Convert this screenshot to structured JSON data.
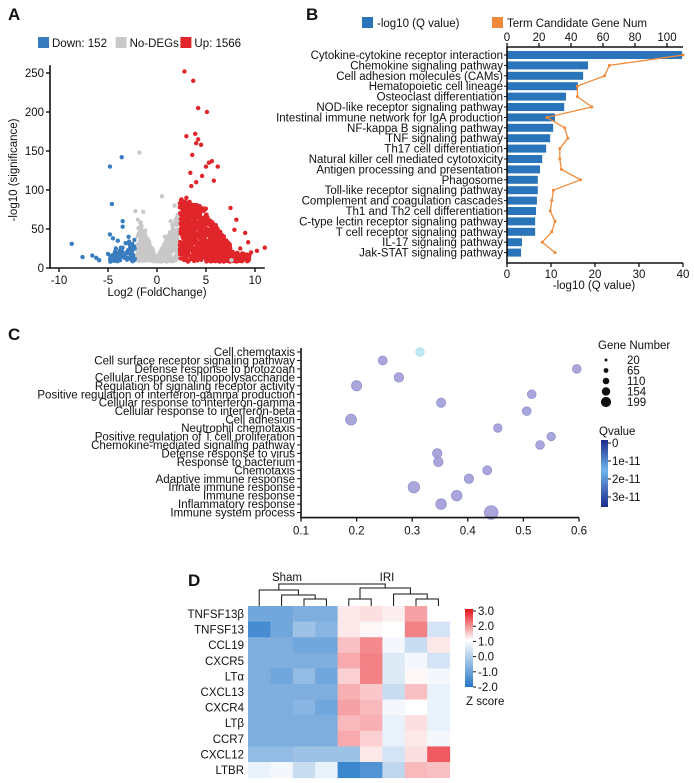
{
  "panels": {
    "a": {
      "letter": "A"
    },
    "b": {
      "letter": "B"
    },
    "c": {
      "letter": "C"
    },
    "d": {
      "letter": "D"
    }
  },
  "colors": {
    "down": "#3a7dbf",
    "nodeg": "#c8c8c8",
    "up": "#e0262a",
    "bar": "#2a74b9",
    "line": "#f08a3a",
    "bubble": "#a9a6dc",
    "bubble_light": "#bfe8f2"
  },
  "chart_data": [
    {
      "id": "volcano",
      "type": "scatter",
      "title": "",
      "xlabel": "Log2 (FoldChange)",
      "ylabel": "-log10 (significance)",
      "xlim": [
        -11,
        11
      ],
      "ylim": [
        0,
        260
      ],
      "xticks": [
        -10,
        -5,
        0,
        5,
        10
      ],
      "yticks": [
        0,
        50,
        100,
        150,
        200,
        250
      ],
      "legend": [
        {
          "name": "Down: 152",
          "color": "#3a7dbf"
        },
        {
          "name": "No-DEGs",
          "color": "#c8c8c8"
        },
        {
          "name": "Up: 1566",
          "color": "#e0262a"
        }
      ],
      "legend_position": "top",
      "series": [
        {
          "name": "Down",
          "count": 152,
          "points": [
            [
              -8.7,
              31
            ],
            [
              -7.6,
              14
            ],
            [
              -6.6,
              16
            ],
            [
              -6.2,
              13
            ],
            [
              -5.9,
              10
            ],
            [
              -4.8,
              130
            ],
            [
              -4.6,
              82
            ],
            [
              -3.6,
              142
            ],
            [
              -3.5,
              60
            ],
            [
              -3.5,
              53
            ],
            [
              -4.8,
              43
            ],
            [
              -4.5,
              38
            ],
            [
              -4.0,
              35
            ],
            [
              -3.2,
              32
            ],
            [
              -2.8,
              30
            ],
            [
              -2.5,
              28
            ],
            [
              -4.2,
              25
            ],
            [
              -3.8,
              22
            ],
            [
              -3.0,
              20
            ],
            [
              -2.6,
              18
            ],
            [
              -5.0,
              18
            ],
            [
              -4.4,
              15
            ],
            [
              -3.4,
              14
            ],
            [
              -2.4,
              12
            ],
            [
              -2.9,
              40
            ],
            [
              -2.3,
              36
            ]
          ]
        },
        {
          "name": "No-DEGs",
          "points": [
            [
              -1.8,
              148
            ],
            [
              -2.2,
              73
            ],
            [
              -1.4,
              72
            ],
            [
              0.5,
              92
            ],
            [
              -1.6,
              55
            ],
            [
              -1.2,
              48
            ],
            [
              1.4,
              60
            ],
            [
              1.8,
              80
            ],
            [
              -1.0,
              35
            ],
            [
              0.8,
              40
            ],
            [
              -0.4,
              18
            ],
            [
              0.3,
              20
            ],
            [
              1.2,
              28
            ],
            [
              -1.7,
              25
            ],
            [
              2.0,
              45
            ],
            [
              -0.8,
              24
            ],
            [
              1.6,
              32
            ],
            [
              7.6,
              10
            ]
          ]
        },
        {
          "name": "Up",
          "count": 1566,
          "points": [
            [
              2.8,
              252
            ],
            [
              3.7,
              240
            ],
            [
              4.2,
              205
            ],
            [
              5.1,
              200
            ],
            [
              3.0,
              169
            ],
            [
              3.9,
              172
            ],
            [
              4.2,
              165
            ],
            [
              4.0,
              160
            ],
            [
              4.5,
              158
            ],
            [
              3.6,
              145
            ],
            [
              5.3,
              135
            ],
            [
              5.6,
              137
            ],
            [
              5.0,
              130
            ],
            [
              3.4,
              122
            ],
            [
              4.6,
              118
            ],
            [
              6.2,
              130
            ],
            [
              4.0,
              110
            ],
            [
              3.5,
              105
            ],
            [
              5.8,
              112
            ],
            [
              7.5,
              77
            ],
            [
              8.1,
              62
            ],
            [
              9.3,
              33
            ],
            [
              10.2,
              22
            ],
            [
              11.0,
              26
            ],
            [
              9.0,
              45
            ],
            [
              7.9,
              49
            ],
            [
              6.8,
              40
            ],
            [
              8.5,
              25
            ],
            [
              9.6,
              20
            ],
            [
              3.0,
              90
            ],
            [
              3.8,
              80
            ],
            [
              4.4,
              70
            ],
            [
              5.2,
              60
            ],
            [
              6.0,
              55
            ],
            [
              2.6,
              65
            ],
            [
              3.2,
              50
            ],
            [
              4.8,
              45
            ],
            [
              5.6,
              35
            ],
            [
              6.4,
              28
            ],
            [
              7.2,
              22
            ],
            [
              2.9,
              30
            ],
            [
              3.6,
              25
            ],
            [
              4.2,
              20
            ],
            [
              5.0,
              15
            ],
            [
              6.0,
              12
            ],
            [
              2.7,
              12
            ],
            [
              3.3,
              40
            ],
            [
              4.0,
              35
            ],
            [
              7.0,
              32
            ],
            [
              8.0,
              18
            ]
          ]
        }
      ]
    },
    {
      "id": "kegg",
      "type": "bar",
      "title": "",
      "xlabel": "-log10 (Q value)",
      "xlim": [
        0,
        40
      ],
      "xticks": [
        0,
        10,
        20,
        30,
        40
      ],
      "secondary_axis": {
        "name": "Term Candidate Gene Num",
        "xlim": [
          0,
          110
        ],
        "xticks": [
          0,
          20,
          40,
          60,
          80,
          100
        ]
      },
      "legend": [
        {
          "name": "-log10 (Q value)",
          "color": "#2a74b9"
        },
        {
          "name": "Term Candidate Gene Num",
          "color": "#f08a3a"
        }
      ],
      "legend_position": "top",
      "categories": [
        "Cytokine-cytokine receptor interaction",
        "Chemokine signaling pathway",
        "Cell adhesion molecules (CAMs)",
        "Hematopoietic cell lineage",
        "Osteoclast differentiation",
        "NOD-like receptor signaling pathway",
        "Intestinal immune network for IgA production",
        "NF-kappa B signaling pathway",
        "TNF signaling pathway",
        "Th17 cell differentiation",
        "Natural killer cell mediated cytotoxicity",
        "Antigen processing and presentation",
        "Phagosome",
        "Toll-like receptor signaling pathway",
        "Complement and coagulation cascades",
        "Th1 and Th2 cell differentiation",
        "C-type lectin receptor signaling pathway",
        "T cell receptor signaling pathway",
        "IL-17 signaling pathway",
        "Jak-STAT signaling pathway"
      ],
      "series": [
        {
          "name": "-log10 (Q value)",
          "type": "bar",
          "values": [
            39.8,
            18.4,
            17.3,
            16.1,
            13.4,
            13.0,
            10.9,
            10.5,
            9.8,
            8.9,
            8.0,
            7.5,
            7.0,
            7.0,
            6.8,
            6.6,
            6.4,
            6.4,
            3.4,
            3.2
          ]
        },
        {
          "name": "Term Candidate Gene Num",
          "type": "line",
          "values": [
            110,
            64,
            61,
            44,
            44,
            53,
            25,
            36,
            38,
            33,
            33,
            34,
            46,
            29,
            28,
            27,
            30,
            28,
            22,
            30
          ]
        }
      ]
    },
    {
      "id": "go_bubble",
      "type": "scatter",
      "title": "",
      "xlabel": "",
      "xlim": [
        0.1,
        0.6
      ],
      "xticks": [
        0.1,
        0.2,
        0.3,
        0.4,
        0.5,
        0.6
      ],
      "size_legend": {
        "title": "Gene Number",
        "values": [
          20,
          65,
          110,
          154,
          199
        ]
      },
      "color_legend": {
        "title": "Qvalue",
        "ticks": [
          "0",
          "1e-11",
          "2e-11",
          "3e-11"
        ]
      },
      "legend_position": "right",
      "categories": [
        "Cell chemotaxis",
        "Cell surface receptor signaling pathway",
        "Defense response to protozoan",
        "Cellular response to lipopolysaccharide",
        "Regulation of signaling receptor activity",
        "Positive regulation of interferon-gamma production",
        "Cellular response to interferon-gamma",
        "Cellular response to interferon-beta",
        "Cell adhesion",
        "Neutrophil chemotaxis",
        "Positive regulation of T cell proliferation",
        "Chemokine-mediated signaling pathway",
        "Defense response to virus",
        "Response to bacterium",
        "Chemotaxis",
        "Adaptive immune response",
        "Innate immune response",
        "Immune response",
        "Inflammatory response",
        "Immune system process"
      ],
      "x": [
        0.314,
        0.247,
        0.596,
        0.276,
        0.2,
        0.515,
        0.352,
        0.506,
        0.19,
        0.454,
        0.55,
        0.53,
        0.345,
        0.347,
        0.435,
        0.402,
        0.303,
        0.38,
        0.352,
        0.442
      ],
      "gene_number": [
        30,
        40,
        35,
        50,
        70,
        35,
        45,
        35,
        90,
        30,
        30,
        35,
        50,
        50,
        40,
        50,
        110,
        80,
        80,
        199
      ],
      "qvalue": [
        2e-11,
        0,
        0,
        0,
        0,
        0,
        0,
        0,
        0,
        0,
        0,
        0,
        0,
        0,
        0,
        0,
        0,
        0,
        0,
        0
      ]
    },
    {
      "id": "heatmap",
      "type": "heatmap",
      "title": "",
      "groups": [
        {
          "name": "Sham",
          "columns": 4
        },
        {
          "name": "IRI",
          "columns": 5
        }
      ],
      "rows": [
        "TNFSF13β",
        "TNFSF13",
        "CCL19",
        "CXCR5",
        "LTα",
        "CXCL13",
        "CXCR4",
        "LTβ",
        "CCR7",
        "CXCL12",
        "LTBR"
      ],
      "values": [
        [
          -1.3,
          -1.3,
          -1.2,
          -1.2,
          0.3,
          0.4,
          0.2,
          1.2,
          0.0
        ],
        [
          -1.7,
          -1.3,
          -0.9,
          -1.1,
          0.3,
          0.1,
          0.0,
          1.6,
          -0.4
        ],
        [
          -1.2,
          -1.2,
          -1.3,
          -1.3,
          0.8,
          1.5,
          -0.1,
          -0.5,
          0.3
        ],
        [
          -1.2,
          -1.2,
          -1.2,
          -1.2,
          1.1,
          1.6,
          -0.3,
          -0.1,
          -0.4
        ],
        [
          -1.2,
          -1.3,
          -1.0,
          -1.3,
          0.6,
          1.6,
          -0.3,
          0.1,
          -0.1
        ],
        [
          -1.2,
          -1.2,
          -1.2,
          -1.2,
          1.0,
          0.7,
          -0.5,
          0.8,
          -0.2
        ],
        [
          -1.2,
          -1.2,
          -1.1,
          -1.3,
          1.2,
          0.9,
          -0.1,
          0.0,
          -0.2
        ],
        [
          -1.2,
          -1.2,
          -1.2,
          -1.2,
          0.9,
          1.0,
          -0.2,
          0.4,
          -0.2
        ],
        [
          -1.2,
          -1.2,
          -1.2,
          -1.2,
          1.1,
          0.6,
          -0.2,
          0.3,
          -0.1
        ],
        [
          -1.0,
          -1.0,
          -0.9,
          -0.9,
          -0.9,
          0.3,
          -0.4,
          0.4,
          2.1
        ],
        [
          -0.2,
          -0.1,
          -0.5,
          -0.2,
          -1.8,
          -1.6,
          -0.6,
          0.9,
          0.8
        ]
      ],
      "color_scale": {
        "min": -2.0,
        "max": 3.0,
        "ticks": [
          "3.0",
          "2.0",
          "1.0",
          "0.0",
          "-1.0",
          "-2.0"
        ],
        "title": "Z score"
      },
      "legend_position": "right"
    }
  ]
}
